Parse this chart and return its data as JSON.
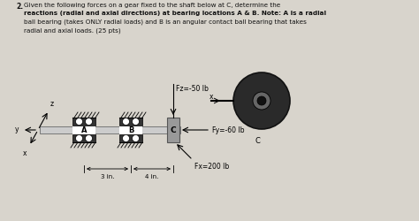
{
  "bg_color": "#d8d4cc",
  "text_color": "#111111",
  "title_num": "2.",
  "title_lines": [
    "Given the following forces on a gear fixed to the shaft below at C, determine the",
    "reactions (radial and axial directions) at bearing locations A & B. Note: A is a radial",
    "ball bearing (takes ONLY radial loads) and B is an angular contact ball bearing that takes",
    "radial and axial loads. (25 pts)"
  ],
  "title_bold_line": 1,
  "Fz_label": "Fz=-50 lb",
  "Fy_label": "Fy=-60 lb",
  "Fx_label": "Fx=200 lb",
  "dim1_label": "3 in.",
  "dim2_label": "4 in.",
  "label_A": "A",
  "label_B": "B",
  "label_C": "C",
  "label_C2": "C",
  "label_x1": "x",
  "label_y": "y",
  "label_z": "z",
  "label_x2": "x",
  "shaft_color": "#cccccc",
  "bearing_dark": "#333333",
  "bearing_mid": "#888888",
  "block_C_color": "#999999",
  "gear_dark": "#2a2a2a",
  "gear_mid": "#666666"
}
